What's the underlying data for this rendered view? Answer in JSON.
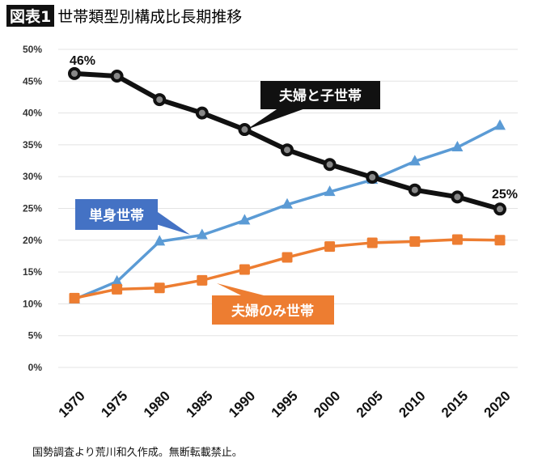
{
  "title": {
    "badge": "図表1",
    "text": "世帯類型別構成比長期推移"
  },
  "footnote": "国勢調査より荒川和久作成。無断転載禁止。",
  "chart_data": {
    "type": "line",
    "title": "世帯類型別構成比長期推移",
    "xlabel": "",
    "ylabel": "",
    "categories": [
      "1970",
      "1975",
      "1980",
      "1985",
      "1990",
      "1995",
      "2000",
      "2005",
      "2010",
      "2015",
      "2020"
    ],
    "yticks": [
      "0%",
      "5%",
      "10%",
      "15%",
      "20%",
      "25%",
      "30%",
      "35%",
      "40%",
      "45%",
      "50%"
    ],
    "ylim": [
      0,
      50
    ],
    "grid": true,
    "series": [
      {
        "name": "夫婦と子世帯",
        "color": "#111111",
        "marker": "circle",
        "values": [
          46.2,
          45.8,
          42.1,
          40.0,
          37.4,
          34.2,
          31.9,
          29.9,
          27.9,
          26.8,
          24.9
        ]
      },
      {
        "name": "単身世帯",
        "color": "#5b9bd5",
        "marker": "triangle",
        "label_bg": "#4472c4",
        "values": [
          10.7,
          13.5,
          19.8,
          20.8,
          23.1,
          25.6,
          27.6,
          29.5,
          32.4,
          34.6,
          38.0
        ]
      },
      {
        "name": "夫婦のみ世帯",
        "color": "#ed7d31",
        "marker": "square",
        "label_bg": "#ed7d31",
        "values": [
          10.9,
          12.3,
          12.5,
          13.7,
          15.4,
          17.3,
          19.0,
          19.6,
          19.8,
          20.1,
          20.0
        ]
      }
    ],
    "annotations": [
      "46%",
      "25%"
    ]
  }
}
